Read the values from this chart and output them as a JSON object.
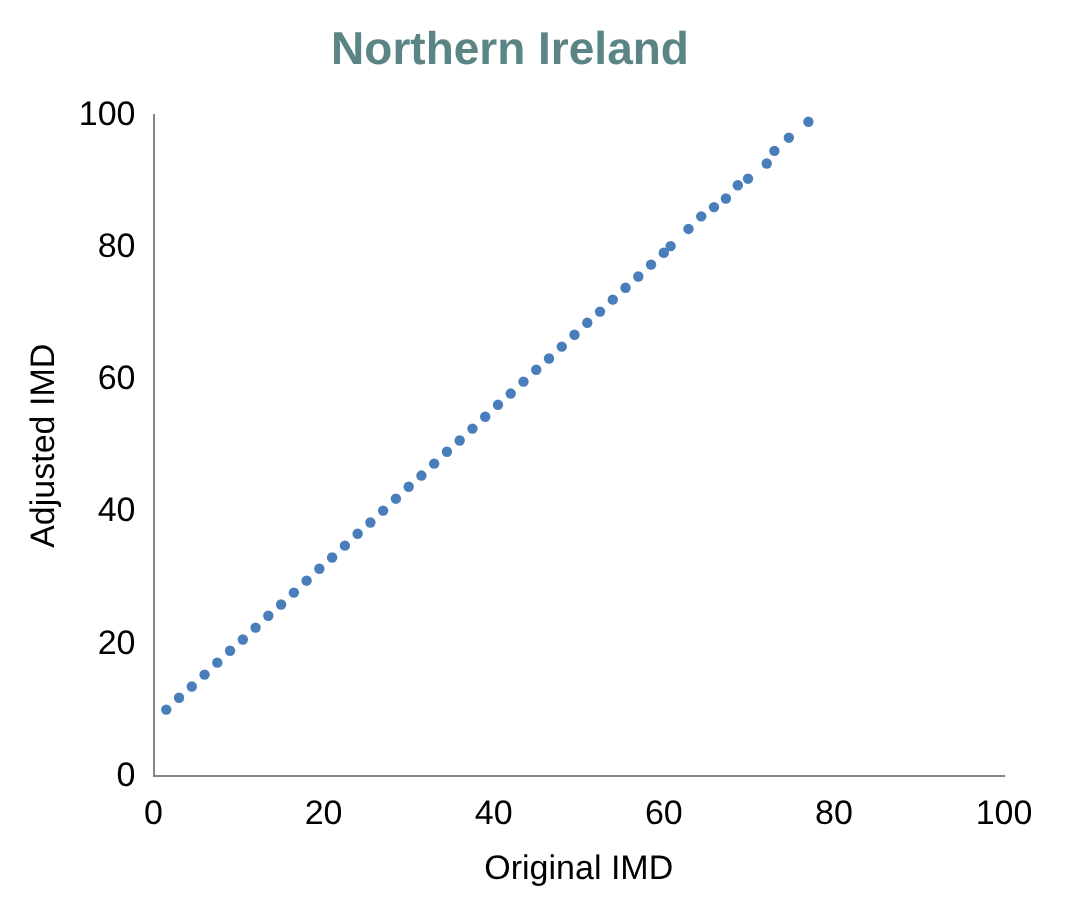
{
  "chart_data": {
    "type": "scatter",
    "title": "Northern Ireland",
    "xlabel": "Original IMD",
    "ylabel": "Adjusted IMD",
    "xlim": [
      0,
      100
    ],
    "xticks": [
      0,
      20,
      40,
      60,
      80,
      100
    ],
    "ylim": [
      0,
      100
    ],
    "yticks": [
      0,
      20,
      40,
      60,
      80,
      100
    ],
    "grid": false,
    "legend": false,
    "marker": "circle",
    "series": [
      {
        "color": "#4a7ebb",
        "x": [
          1.5,
          3,
          4.5,
          6,
          7.5,
          9,
          10.5,
          12,
          13.5,
          15,
          16.5,
          18,
          19.5,
          21,
          22.5,
          24,
          25.5,
          27,
          28.5,
          30,
          31.5,
          33,
          34.5,
          36,
          37.5,
          39,
          40.5,
          42,
          43.5,
          45,
          46.5,
          48,
          49.5,
          51,
          52.5,
          54,
          55.5,
          57,
          58.5,
          60,
          60.8,
          62.9,
          64.4,
          65.9,
          67.3,
          68.7,
          69.9,
          72.1,
          73,
          74.7,
          77
        ],
        "values": [
          10.1,
          11.9,
          13.6,
          15.4,
          17.2,
          19,
          20.7,
          22.5,
          24.3,
          26,
          27.8,
          29.6,
          31.4,
          33.1,
          34.9,
          36.7,
          38.4,
          40.2,
          42,
          43.8,
          45.5,
          47.3,
          49.1,
          50.8,
          52.6,
          54.4,
          56.2,
          57.9,
          59.7,
          61.5,
          63.2,
          65,
          66.8,
          68.6,
          70.3,
          72.1,
          73.9,
          75.6,
          77.4,
          79.2,
          80.2,
          82.8,
          84.7,
          86.1,
          87.4,
          89.4,
          90.4,
          92.7,
          94.6,
          96.6,
          99
        ]
      }
    ]
  }
}
